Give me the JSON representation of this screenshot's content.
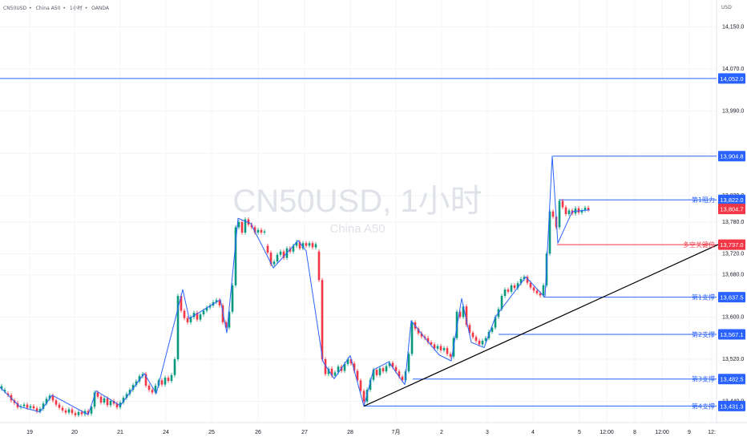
{
  "header": {
    "symbol": "CN50USD",
    "sep": "•",
    "name": "China A50",
    "interval": "1小时",
    "broker": "OANDA",
    "currency": "USD"
  },
  "chart_data": {
    "type": "candlestick",
    "watermark": {
      "title": "CN50USD, 1小时",
      "subtitle": "China A50"
    },
    "y_range": [
      13400,
      14190
    ],
    "y_ticks": [
      "14,150.0",
      "14,070.0",
      "13,990.0",
      "13,910.0",
      "13,830.0",
      "13,780.0",
      "13,720.0",
      "13,680.0",
      "13,600.0",
      "13,520.0",
      "13,440.0"
    ],
    "x_labels": [
      "19",
      "20",
      "21",
      "24",
      "25",
      "26",
      "27",
      "28",
      "7月",
      "2",
      "3",
      "4",
      "5",
      "12:00",
      "8",
      "12:00",
      "9",
      "12:"
    ],
    "levels": [
      {
        "label": "",
        "value": "14,052.0",
        "num": 14052.0,
        "color": "#2962ff"
      },
      {
        "label": "",
        "value": "13,904.8",
        "num": 13904.8,
        "color": "#2962ff"
      },
      {
        "label": "第1阻力",
        "value": "13,822.0",
        "num": 13822.0,
        "color": "#2962ff"
      },
      {
        "label": "",
        "value": "13,804.7",
        "num": 13804.7,
        "color": "#f23645"
      },
      {
        "label": "多空关键位",
        "value": "13,737.0",
        "num": 13737.0,
        "color": "#f23645"
      },
      {
        "label": "第1支撑",
        "value": "13,637.5",
        "num": 13637.5,
        "color": "#2962ff"
      },
      {
        "label": "第2支撑",
        "value": "13,567.1",
        "num": 13567.1,
        "color": "#2962ff"
      },
      {
        "label": "第3支撑",
        "value": "13,482.5",
        "num": 13482.5,
        "color": "#2962ff"
      },
      {
        "label": "第4支撑",
        "value": "13,431.3",
        "num": 13431.3,
        "color": "#2962ff"
      }
    ],
    "zigzag": [
      [
        0,
        13467
      ],
      [
        25,
        13430
      ],
      [
        50,
        13420
      ],
      [
        65,
        13452
      ],
      [
        110,
        13415
      ],
      [
        120,
        13460
      ],
      [
        150,
        13432
      ],
      [
        180,
        13493
      ],
      [
        195,
        13455
      ],
      [
        228,
        13652
      ],
      [
        236,
        13597
      ],
      [
        275,
        13633
      ],
      [
        283,
        13570
      ],
      [
        297,
        13787
      ],
      [
        313,
        13777
      ],
      [
        341,
        13693
      ],
      [
        372,
        13745
      ],
      [
        382,
        13725
      ],
      [
        403,
        13515
      ],
      [
        417,
        13483
      ],
      [
        437,
        13527
      ],
      [
        454,
        13431
      ],
      [
        466,
        13500
      ],
      [
        485,
        13515
      ],
      [
        505,
        13472
      ],
      [
        513,
        13593
      ],
      [
        533,
        13555
      ],
      [
        548,
        13528
      ],
      [
        563,
        13517
      ],
      [
        576,
        13635
      ],
      [
        588,
        13552
      ],
      [
        604,
        13542
      ],
      [
        618,
        13600
      ],
      [
        656,
        13676
      ],
      [
        680,
        13637
      ],
      [
        689,
        13905
      ],
      [
        696,
        13740
      ],
      [
        714,
        13800
      ],
      [
        736,
        13803
      ]
    ],
    "trendline": [
      [
        454,
        13431
      ],
      [
        897,
        13738
      ]
    ],
    "candles": [
      [
        2,
        13464,
        13469
      ],
      [
        6,
        13459,
        13462
      ],
      [
        10,
        13455,
        13452
      ],
      [
        14,
        13452,
        13442
      ],
      [
        18,
        13442,
        13437
      ],
      [
        22,
        13437,
        13429
      ],
      [
        26,
        13429,
        13431
      ],
      [
        30,
        13431,
        13434
      ],
      [
        34,
        13434,
        13428
      ],
      [
        38,
        13428,
        13431
      ],
      [
        42,
        13431,
        13427
      ],
      [
        46,
        13427,
        13421
      ],
      [
        50,
        13421,
        13426
      ],
      [
        54,
        13426,
        13436
      ],
      [
        58,
        13436,
        13445
      ],
      [
        62,
        13445,
        13451
      ],
      [
        66,
        13451,
        13442
      ],
      [
        70,
        13442,
        13434
      ],
      [
        74,
        13434,
        13428
      ],
      [
        78,
        13428,
        13423
      ],
      [
        82,
        13423,
        13419
      ],
      [
        86,
        13419,
        13425
      ],
      [
        90,
        13425,
        13418
      ],
      [
        94,
        13418,
        13414
      ],
      [
        98,
        13414,
        13420
      ],
      [
        102,
        13420,
        13416
      ],
      [
        106,
        13416,
        13422
      ],
      [
        110,
        13422,
        13417
      ],
      [
        114,
        13417,
        13430
      ],
      [
        118,
        13430,
        13457
      ],
      [
        122,
        13457,
        13449
      ],
      [
        126,
        13449,
        13438
      ],
      [
        130,
        13438,
        13446
      ],
      [
        134,
        13446,
        13433
      ],
      [
        138,
        13433,
        13441
      ],
      [
        142,
        13441,
        13436
      ],
      [
        146,
        13436,
        13429
      ],
      [
        150,
        13429,
        13438
      ],
      [
        154,
        13438,
        13447
      ],
      [
        158,
        13447,
        13454
      ],
      [
        162,
        13454,
        13462
      ],
      [
        166,
        13462,
        13471
      ],
      [
        170,
        13471,
        13478
      ],
      [
        174,
        13478,
        13488
      ],
      [
        178,
        13488,
        13492
      ],
      [
        182,
        13492,
        13470
      ],
      [
        186,
        13470,
        13462
      ],
      [
        190,
        13462,
        13457
      ],
      [
        194,
        13457,
        13470
      ],
      [
        198,
        13470,
        13480
      ],
      [
        202,
        13480,
        13472
      ],
      [
        206,
        13472,
        13485
      ],
      [
        210,
        13485,
        13479
      ],
      [
        214,
        13479,
        13490
      ],
      [
        218,
        13490,
        13520
      ],
      [
        222,
        13520,
        13640
      ],
      [
        226,
        13640,
        13612
      ],
      [
        230,
        13612,
        13598
      ],
      [
        234,
        13598,
        13590
      ],
      [
        238,
        13590,
        13600
      ],
      [
        242,
        13600,
        13608
      ],
      [
        246,
        13608,
        13595
      ],
      [
        250,
        13595,
        13605
      ],
      [
        254,
        13605,
        13612
      ],
      [
        258,
        13612,
        13618
      ],
      [
        262,
        13618,
        13622
      ],
      [
        266,
        13622,
        13628
      ],
      [
        270,
        13628,
        13632
      ],
      [
        274,
        13632,
        13622
      ],
      [
        278,
        13622,
        13590
      ],
      [
        282,
        13590,
        13580
      ],
      [
        286,
        13580,
        13610
      ],
      [
        290,
        13610,
        13660
      ],
      [
        294,
        13660,
        13770
      ],
      [
        298,
        13770,
        13780
      ],
      [
        302,
        13780,
        13760
      ],
      [
        306,
        13760,
        13785
      ],
      [
        310,
        13785,
        13775
      ],
      [
        314,
        13775,
        13770
      ],
      [
        318,
        13770,
        13760
      ],
      [
        322,
        13760,
        13765
      ],
      [
        326,
        13765,
        13760
      ],
      [
        330,
        13760,
        13762
      ],
      [
        334,
        13735,
        13722
      ],
      [
        338,
        13722,
        13700
      ],
      [
        342,
        13700,
        13705
      ],
      [
        346,
        13705,
        13718
      ],
      [
        350,
        13718,
        13724
      ],
      [
        354,
        13724,
        13712
      ],
      [
        358,
        13712,
        13730
      ],
      [
        362,
        13730,
        13724
      ],
      [
        366,
        13724,
        13735
      ],
      [
        370,
        13735,
        13742
      ],
      [
        374,
        13742,
        13730
      ],
      [
        378,
        13730,
        13740
      ],
      [
        382,
        13740,
        13735
      ],
      [
        386,
        13735,
        13740
      ],
      [
        390,
        13740,
        13732
      ],
      [
        394,
        13732,
        13738
      ],
      [
        398,
        13724,
        13670
      ],
      [
        402,
        13670,
        13520
      ],
      [
        406,
        13520,
        13492
      ],
      [
        410,
        13492,
        13502
      ],
      [
        414,
        13502,
        13489
      ],
      [
        418,
        13489,
        13495
      ],
      [
        422,
        13495,
        13506
      ],
      [
        426,
        13506,
        13498
      ],
      [
        430,
        13498,
        13511
      ],
      [
        434,
        13511,
        13520
      ],
      [
        438,
        13520,
        13512
      ],
      [
        442,
        13512,
        13498
      ],
      [
        446,
        13498,
        13480
      ],
      [
        450,
        13480,
        13460
      ],
      [
        454,
        13460,
        13440
      ],
      [
        458,
        13440,
        13462
      ],
      [
        462,
        13462,
        13481
      ],
      [
        466,
        13481,
        13500
      ],
      [
        470,
        13500,
        13490
      ],
      [
        474,
        13490,
        13503
      ],
      [
        478,
        13503,
        13497
      ],
      [
        482,
        13497,
        13507
      ],
      [
        486,
        13507,
        13513
      ],
      [
        490,
        13513,
        13505
      ],
      [
        494,
        13505,
        13497
      ],
      [
        498,
        13497,
        13487
      ],
      [
        502,
        13487,
        13480
      ],
      [
        506,
        13480,
        13497
      ],
      [
        510,
        13497,
        13530
      ],
      [
        514,
        13530,
        13590
      ],
      [
        518,
        13590,
        13578
      ],
      [
        522,
        13578,
        13569
      ],
      [
        526,
        13569,
        13563
      ],
      [
        530,
        13563,
        13560
      ],
      [
        534,
        13560,
        13552
      ],
      [
        538,
        13552,
        13548
      ],
      [
        542,
        13548,
        13540
      ],
      [
        546,
        13540,
        13545
      ],
      [
        550,
        13545,
        13537
      ],
      [
        554,
        13537,
        13541
      ],
      [
        558,
        13541,
        13530
      ],
      [
        562,
        13530,
        13525
      ],
      [
        566,
        13525,
        13560
      ],
      [
        570,
        13560,
        13610
      ],
      [
        574,
        13610,
        13600
      ],
      [
        578,
        13600,
        13620
      ],
      [
        582,
        13620,
        13585
      ],
      [
        586,
        13585,
        13570
      ],
      [
        590,
        13570,
        13562
      ],
      [
        594,
        13562,
        13555
      ],
      [
        598,
        13555,
        13548
      ],
      [
        602,
        13548,
        13555
      ],
      [
        606,
        13555,
        13560
      ],
      [
        610,
        13560,
        13572
      ],
      [
        614,
        13572,
        13580
      ],
      [
        618,
        13580,
        13600
      ],
      [
        622,
        13600,
        13615
      ],
      [
        626,
        13615,
        13640
      ],
      [
        630,
        13640,
        13652
      ],
      [
        634,
        13652,
        13648
      ],
      [
        638,
        13648,
        13660
      ],
      [
        642,
        13660,
        13655
      ],
      [
        646,
        13655,
        13664
      ],
      [
        650,
        13664,
        13672
      ],
      [
        654,
        13672,
        13676
      ],
      [
        658,
        13676,
        13665
      ],
      [
        662,
        13665,
        13656
      ],
      [
        666,
        13656,
        13650
      ],
      [
        670,
        13650,
        13645
      ],
      [
        674,
        13645,
        13641
      ],
      [
        678,
        13641,
        13660
      ],
      [
        682,
        13660,
        13720
      ],
      [
        686,
        13720,
        13800
      ],
      [
        690,
        13800,
        13790
      ],
      [
        694,
        13790,
        13770
      ],
      [
        698,
        13770,
        13820
      ],
      [
        702,
        13820,
        13808
      ],
      [
        706,
        13808,
        13795
      ],
      [
        710,
        13795,
        13802
      ],
      [
        714,
        13802,
        13796
      ],
      [
        718,
        13796,
        13806
      ],
      [
        722,
        13806,
        13798
      ],
      [
        726,
        13798,
        13802
      ],
      [
        730,
        13802,
        13807
      ],
      [
        734,
        13807,
        13803
      ]
    ]
  }
}
